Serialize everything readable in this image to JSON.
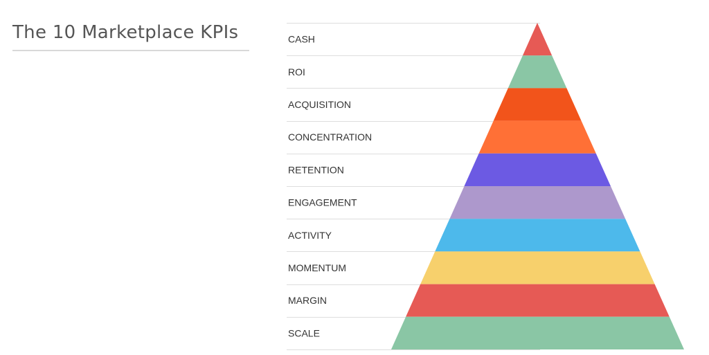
{
  "title": "The 10 Marketplace KPIs",
  "tiers": [
    {
      "label": "CASH",
      "color": "#e65a55"
    },
    {
      "label": "ROI",
      "color": "#8ac6a5"
    },
    {
      "label": "ACQUISITION",
      "color": "#f2541b"
    },
    {
      "label": "CONCENTRATION",
      "color": "#ff7036"
    },
    {
      "label": "RETENTION",
      "color": "#6c5ae3"
    },
    {
      "label": "ENGAGEMENT",
      "color": "#ad98cc"
    },
    {
      "label": "ACTIVITY",
      "color": "#4db9eb"
    },
    {
      "label": "MOMENTUM",
      "color": "#f7d06c"
    },
    {
      "label": "MARGIN",
      "color": "#e65a55"
    },
    {
      "label": "SCALE",
      "color": "#8ac6a5"
    }
  ]
}
